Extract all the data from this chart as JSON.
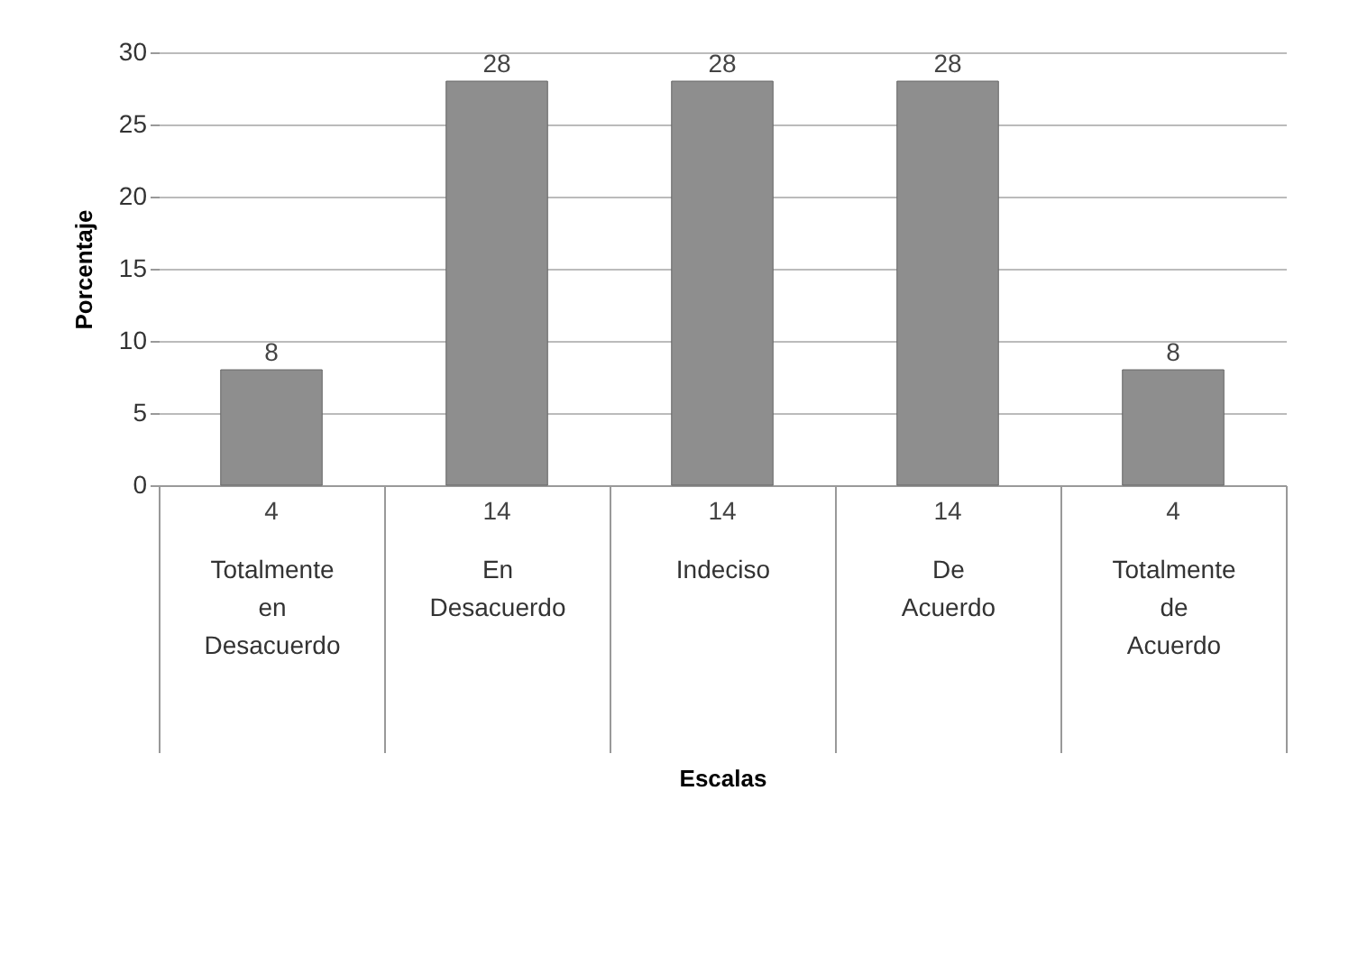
{
  "chart_data": {
    "type": "bar",
    "xlabel": "Escalas",
    "ylabel": "Porcentaje",
    "categories": [
      "Totalmente en Desacuerdo",
      "En Desacuerdo",
      "Indeciso",
      "De Acuerdo",
      "Totalmente de Acuerdo"
    ],
    "values": [
      8,
      28,
      28,
      28,
      8
    ],
    "color": "#8e8e8e",
    "data_labels": true,
    "ylim": [
      0,
      30
    ],
    "yticks": [
      0,
      5,
      10,
      15,
      20,
      25,
      30
    ],
    "grid": "y",
    "annotations": [
      "4",
      "14",
      "14",
      "14",
      "4"
    ]
  }
}
